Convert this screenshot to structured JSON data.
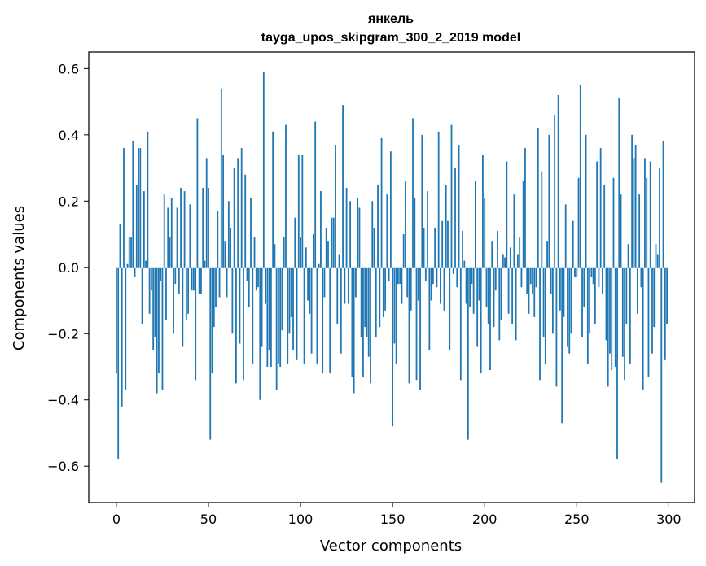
{
  "chart_data": {
    "type": "bar",
    "title": "янкель",
    "subtitle": "tayga_upos_skipgram_300_2_2019 model",
    "xlabel": "Vector components",
    "ylabel": "Components values",
    "xlim": [
      -15,
      314
    ],
    "ylim": [
      -0.71,
      0.65
    ],
    "xticks": [
      0,
      50,
      100,
      150,
      200,
      250,
      300
    ],
    "yticks": [
      -0.6,
      -0.4,
      -0.2,
      0.0,
      0.2,
      0.4,
      0.6
    ],
    "ytick_labels": [
      "−0.6",
      "−0.4",
      "−0.2",
      "0.0",
      "0.2",
      "0.4",
      "0.6"
    ],
    "grid": false,
    "bar_color": "#1f77b4",
    "values": [
      -0.32,
      -0.58,
      0.13,
      -0.42,
      0.36,
      -0.37,
      0.01,
      0.09,
      0.09,
      0.38,
      -0.03,
      0.25,
      0.36,
      0.36,
      -0.17,
      0.23,
      0.02,
      0.41,
      -0.14,
      -0.07,
      -0.25,
      -0.21,
      -0.38,
      -0.32,
      -0.04,
      -0.37,
      0.22,
      -0.16,
      0.18,
      0.09,
      0.21,
      -0.2,
      -0.05,
      0.18,
      -0.08,
      0.24,
      -0.24,
      0.23,
      -0.16,
      -0.14,
      0.19,
      -0.07,
      -0.07,
      -0.34,
      0.45,
      -0.08,
      -0.08,
      0.24,
      0.02,
      0.33,
      0.24,
      -0.52,
      -0.32,
      -0.18,
      -0.12,
      0.17,
      -0.09,
      0.54,
      0.34,
      0.08,
      -0.09,
      0.2,
      0.12,
      -0.2,
      0.3,
      -0.35,
      0.33,
      -0.23,
      0.36,
      -0.34,
      0.28,
      -0.04,
      -0.12,
      0.21,
      -0.29,
      0.09,
      -0.07,
      -0.06,
      -0.4,
      -0.24,
      0.59,
      -0.11,
      -0.3,
      -0.25,
      -0.3,
      0.41,
      0.07,
      -0.37,
      -0.29,
      -0.3,
      -0.19,
      0.09,
      0.43,
      -0.29,
      -0.2,
      -0.15,
      -0.25,
      0.15,
      -0.28,
      0.34,
      0.09,
      0.34,
      -0.29,
      0.06,
      -0.1,
      -0.14,
      -0.26,
      0.1,
      0.44,
      -0.29,
      0.01,
      0.23,
      -0.32,
      -0.09,
      0.12,
      0.08,
      -0.32,
      0.15,
      0.15,
      0.37,
      -0.17,
      0.04,
      -0.26,
      0.49,
      -0.11,
      0.24,
      -0.11,
      0.2,
      -0.33,
      -0.38,
      -0.09,
      0.21,
      0.18,
      -0.21,
      -0.33,
      -0.18,
      -0.21,
      -0.27,
      -0.35,
      0.2,
      0.12,
      -0.21,
      0.25,
      -0.18,
      0.39,
      -0.15,
      -0.13,
      0.22,
      -0.04,
      0.35,
      -0.48,
      -0.23,
      -0.29,
      -0.05,
      -0.05,
      -0.11,
      0.1,
      0.26,
      -0.09,
      -0.35,
      -0.13,
      0.45,
      0.21,
      -0.34,
      -0.1,
      -0.37,
      0.4,
      0.12,
      -0.04,
      0.23,
      -0.25,
      -0.1,
      -0.05,
      0.12,
      -0.06,
      0.41,
      -0.11,
      0.14,
      -0.13,
      0.25,
      0.14,
      -0.25,
      0.43,
      -0.02,
      0.3,
      -0.06,
      0.37,
      -0.34,
      0.11,
      0.02,
      -0.11,
      -0.52,
      -0.12,
      -0.05,
      -0.14,
      0.26,
      -0.24,
      -0.1,
      -0.32,
      0.34,
      0.21,
      -0.12,
      -0.17,
      -0.31,
      0.08,
      -0.18,
      -0.07,
      0.11,
      -0.22,
      -0.16,
      0.04,
      0.03,
      0.32,
      -0.14,
      0.06,
      -0.17,
      0.22,
      -0.22,
      0.04,
      0.09,
      -0.06,
      0.26,
      0.36,
      -0.08,
      -0.14,
      -0.05,
      -0.08,
      -0.15,
      -0.06,
      0.42,
      -0.34,
      0.29,
      -0.21,
      -0.29,
      0.08,
      0.4,
      -0.08,
      -0.2,
      0.46,
      -0.36,
      0.52,
      -0.13,
      -0.47,
      -0.15,
      0.19,
      -0.24,
      -0.26,
      -0.2,
      0.14,
      -0.03,
      -0.03,
      0.27,
      0.55,
      -0.21,
      -0.12,
      0.4,
      -0.29,
      -0.2,
      -0.03,
      -0.05,
      -0.17,
      0.32,
      -0.06,
      0.36,
      -0.08,
      0.25,
      -0.22,
      -0.36,
      -0.26,
      -0.31,
      0.27,
      -0.3,
      -0.58,
      0.51,
      0.22,
      -0.27,
      -0.34,
      -0.17,
      0.07,
      -0.29,
      0.4,
      0.33,
      0.37,
      -0.14,
      0.22,
      -0.06,
      -0.37,
      0.33,
      0.27,
      -0.33,
      0.32,
      -0.26,
      -0.18,
      0.07,
      0.04,
      0.3,
      -0.65,
      0.38,
      -0.28,
      -0.17
    ]
  }
}
